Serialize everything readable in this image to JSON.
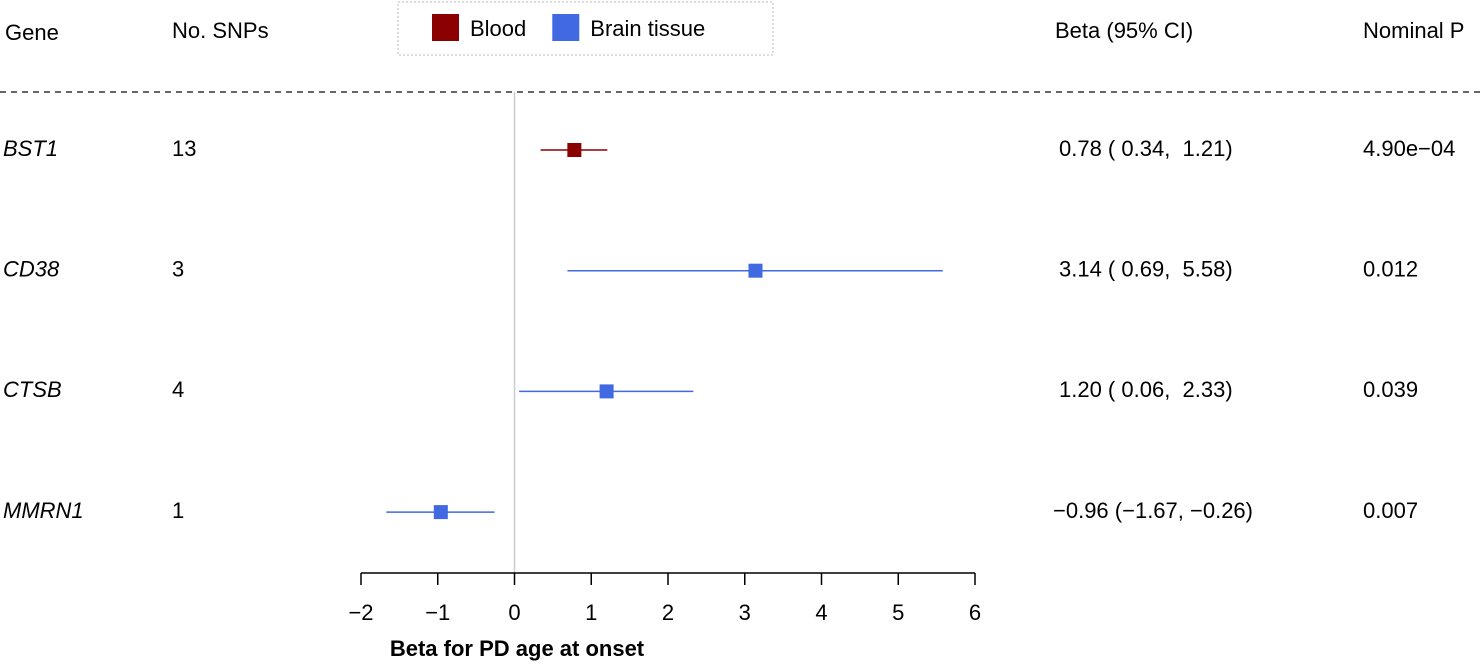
{
  "chart_data": {
    "type": "forest",
    "columns": [
      "Gene",
      "No. SNPs",
      "Beta (95% CI)",
      "Nominal P"
    ],
    "categories": [
      "BST1",
      "CD38",
      "CTSB",
      "MMRN1"
    ],
    "snps": [
      13,
      3,
      4,
      1
    ],
    "series": [
      {
        "name": "Blood",
        "color": "#8b0000",
        "values": [
          0.78,
          null,
          null,
          null
        ],
        "lower": [
          0.34,
          null,
          null,
          null
        ],
        "upper": [
          1.21,
          null,
          null,
          null
        ]
      },
      {
        "name": "Brain tissue",
        "color": "#4169e1",
        "values": [
          null,
          3.14,
          1.2,
          -0.96
        ],
        "lower": [
          null,
          0.69,
          0.06,
          -1.67
        ],
        "upper": [
          null,
          5.58,
          2.33,
          -0.26
        ]
      }
    ],
    "ci_labels": [
      "0.78 ( 0.34,  1.21)",
      "3.14 ( 0.69,  5.58)",
      "1.20 ( 0.06,  2.33)",
      "−0.96 (−1.67, −0.26)"
    ],
    "p_values": [
      "4.90e−04",
      "0.012",
      "0.039",
      "0.007"
    ],
    "xlabel": "Beta for PD age at onset",
    "xlim": [
      -2,
      6
    ],
    "xticks": [
      {
        "value": -2,
        "label": "−2"
      },
      {
        "value": -1,
        "label": "−1"
      },
      0,
      1,
      2,
      3,
      4,
      5,
      6
    ]
  }
}
